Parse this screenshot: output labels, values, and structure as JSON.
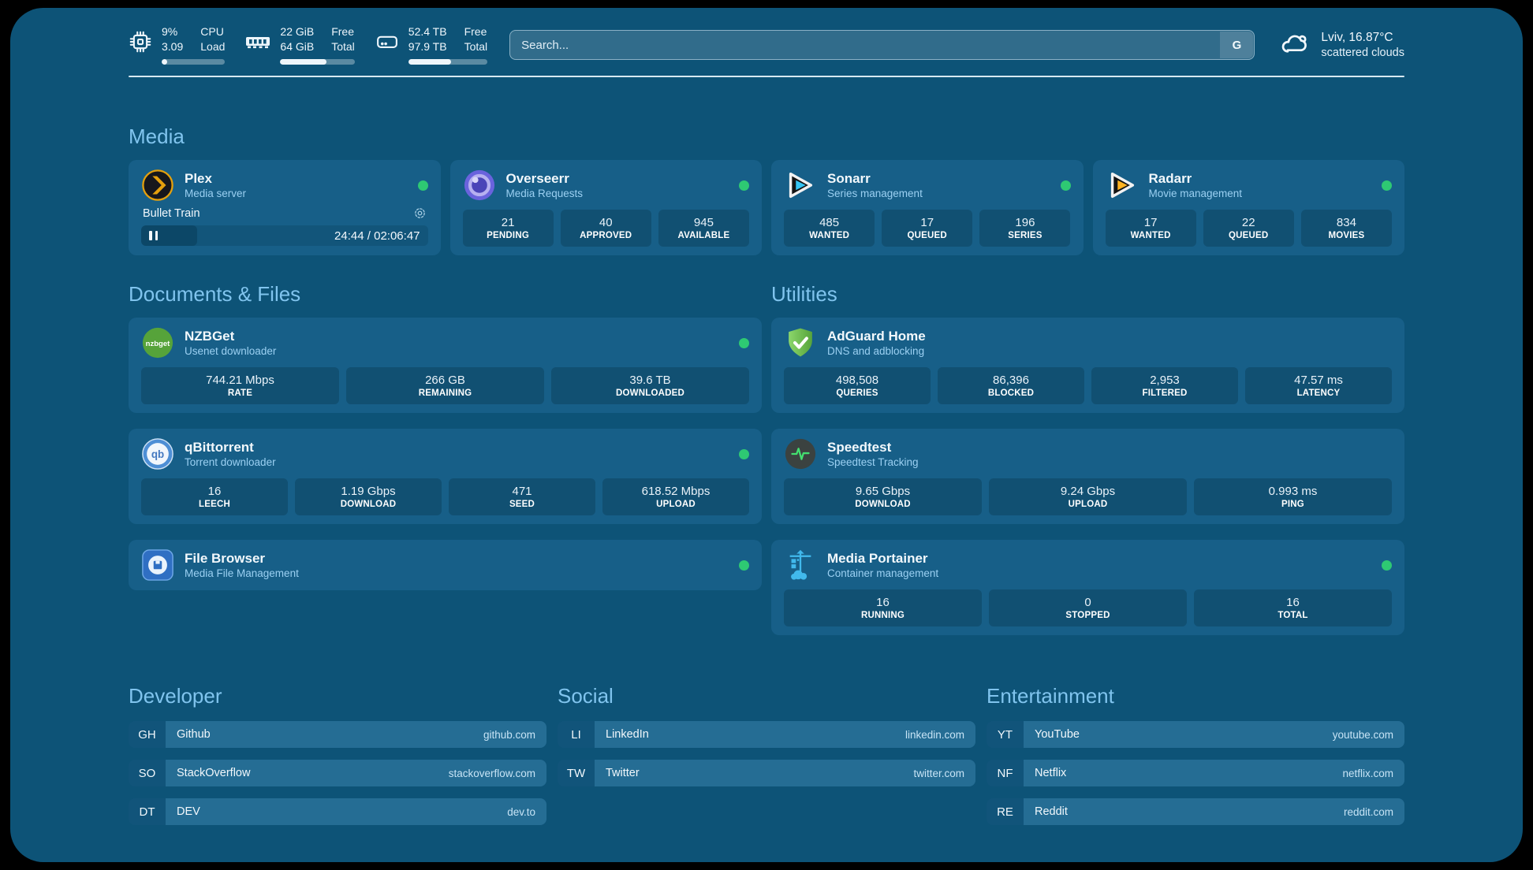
{
  "colors": {
    "background": "#0D5377",
    "card": "#175f88",
    "accent_green": "#2EC973",
    "header_blue": "#80c4ee"
  },
  "icons": [
    "cpu-icon",
    "memory-icon",
    "disk-icon",
    "search-engine-badge",
    "cloud-icon",
    "plex-icon",
    "overseerr-icon",
    "sonarr-icon",
    "radarr-icon",
    "nzbget-icon",
    "adguard-icon",
    "qbittorrent-icon",
    "speedtest-icon",
    "filebrowser-icon",
    "portainer-icon",
    "gear-icon",
    "pause-icon",
    "status-dot"
  ],
  "header": {
    "stats": [
      {
        "name": "cpu",
        "value_top": "9%",
        "value_bottom": "3.09",
        "label_top": "CPU",
        "label_bottom": "Load",
        "progress_pct": 9
      },
      {
        "name": "memory",
        "value_top": "22 GiB",
        "value_bottom": "64 GiB",
        "label_top": "Free",
        "label_bottom": "Total",
        "progress_pct": 62
      },
      {
        "name": "storage",
        "value_top": "52.4 TB",
        "value_bottom": "97.9 TB",
        "label_top": "Free",
        "label_bottom": "Total",
        "progress_pct": 54
      }
    ],
    "search": {
      "placeholder": "Search...",
      "engine_badge": "G"
    },
    "weather": {
      "location": "Lviv, 16.87°C",
      "condition": "scattered clouds"
    }
  },
  "sections": {
    "media": {
      "title": "Media",
      "plex": {
        "name": "Plex",
        "subtitle": "Media server",
        "status": "online",
        "now_playing": {
          "title": "Bullet Train",
          "elapsed": "24:44",
          "separator": " / ",
          "duration": "02:06:47",
          "progress_pct": 19.5
        }
      },
      "overseerr": {
        "name": "Overseerr",
        "subtitle": "Media Requests",
        "status": "online",
        "stats": [
          {
            "value": "21",
            "label": "PENDING"
          },
          {
            "value": "40",
            "label": "APPROVED"
          },
          {
            "value": "945",
            "label": "AVAILABLE"
          }
        ]
      },
      "sonarr": {
        "name": "Sonarr",
        "subtitle": "Series management",
        "status": "online",
        "stats": [
          {
            "value": "485",
            "label": "WANTED"
          },
          {
            "value": "17",
            "label": "QUEUED"
          },
          {
            "value": "196",
            "label": "SERIES"
          }
        ]
      },
      "radarr": {
        "name": "Radarr",
        "subtitle": "Movie management",
        "status": "online",
        "stats": [
          {
            "value": "17",
            "label": "WANTED"
          },
          {
            "value": "22",
            "label": "QUEUED"
          },
          {
            "value": "834",
            "label": "MOVIES"
          }
        ]
      }
    },
    "documents": {
      "title": "Documents & Files",
      "nzbget": {
        "name": "NZBGet",
        "subtitle": "Usenet downloader",
        "status": "online",
        "stats": [
          {
            "value": "744.21 Mbps",
            "label": "RATE"
          },
          {
            "value": "266 GB",
            "label": "REMAINING"
          },
          {
            "value": "39.6 TB",
            "label": "DOWNLOADED"
          }
        ]
      },
      "qbittorrent": {
        "name": "qBittorrent",
        "subtitle": "Torrent downloader",
        "status": "online",
        "stats": [
          {
            "value": "16",
            "label": "LEECH"
          },
          {
            "value": "1.19 Gbps",
            "label": "DOWNLOAD"
          },
          {
            "value": "471",
            "label": "SEED"
          },
          {
            "value": "618.52 Mbps",
            "label": "UPLOAD"
          }
        ]
      },
      "filebrowser": {
        "name": "File Browser",
        "subtitle": "Media File Management",
        "status": "online"
      }
    },
    "utilities": {
      "title": "Utilities",
      "adguard": {
        "name": "AdGuard Home",
        "subtitle": "DNS and adblocking",
        "stats": [
          {
            "value": "498,508",
            "label": "QUERIES"
          },
          {
            "value": "86,396",
            "label": "BLOCKED"
          },
          {
            "value": "2,953",
            "label": "FILTERED"
          },
          {
            "value": "47.57 ms",
            "label": "LATENCY"
          }
        ]
      },
      "speedtest": {
        "name": "Speedtest",
        "subtitle": "Speedtest Tracking",
        "stats": [
          {
            "value": "9.65 Gbps",
            "label": "DOWNLOAD"
          },
          {
            "value": "9.24 Gbps",
            "label": "UPLOAD"
          },
          {
            "value": "0.993 ms",
            "label": "PING"
          }
        ]
      },
      "portainer": {
        "name": "Media Portainer",
        "subtitle": "Container management",
        "status": "online",
        "stats": [
          {
            "value": "16",
            "label": "RUNNING"
          },
          {
            "value": "0",
            "label": "STOPPED"
          },
          {
            "value": "16",
            "label": "TOTAL"
          }
        ]
      }
    },
    "links": {
      "developer": {
        "title": "Developer",
        "items": [
          {
            "tag": "GH",
            "name": "Github",
            "url": "github.com"
          },
          {
            "tag": "SO",
            "name": "StackOverflow",
            "url": "stackoverflow.com"
          },
          {
            "tag": "DT",
            "name": "DEV",
            "url": "dev.to"
          }
        ]
      },
      "social": {
        "title": "Social",
        "items": [
          {
            "tag": "LI",
            "name": "LinkedIn",
            "url": "linkedin.com"
          },
          {
            "tag": "TW",
            "name": "Twitter",
            "url": "twitter.com"
          }
        ]
      },
      "entertainment": {
        "title": "Entertainment",
        "items": [
          {
            "tag": "YT",
            "name": "YouTube",
            "url": "youtube.com"
          },
          {
            "tag": "NF",
            "name": "Netflix",
            "url": "netflix.com"
          },
          {
            "tag": "RE",
            "name": "Reddit",
            "url": "reddit.com"
          }
        ]
      }
    }
  }
}
